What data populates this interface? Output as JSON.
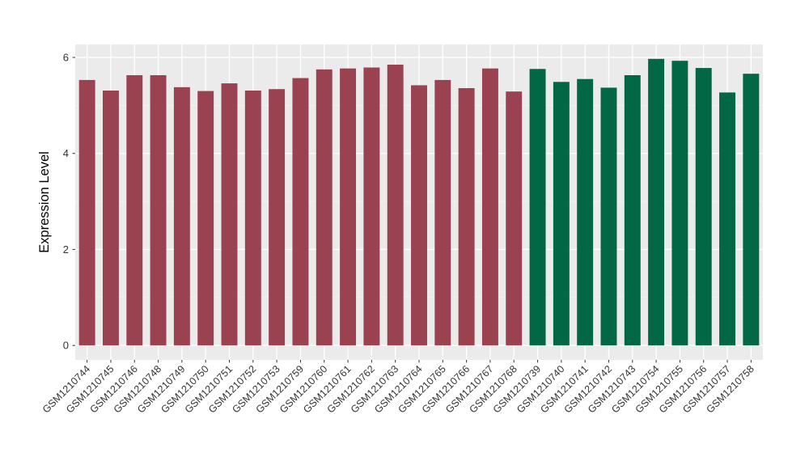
{
  "chart_data": {
    "type": "bar",
    "title": "",
    "xlabel": "",
    "ylabel": "Expression Level",
    "categories": [
      "GSM1210744",
      "GSM1210745",
      "GSM1210746",
      "GSM1210748",
      "GSM1210749",
      "GSM1210750",
      "GSM1210751",
      "GSM1210752",
      "GSM1210753",
      "GSM1210759",
      "GSM1210760",
      "GSM1210761",
      "GSM1210762",
      "GSM1210763",
      "GSM1210764",
      "GSM1210765",
      "GSM1210766",
      "GSM1210767",
      "GSM1210768",
      "GSM1210739",
      "GSM1210740",
      "GSM1210741",
      "GSM1210742",
      "GSM1210743",
      "GSM1210754",
      "GSM1210755",
      "GSM1210756",
      "GSM1210757",
      "GSM1210758"
    ],
    "values": [
      5.53,
      5.31,
      5.63,
      5.63,
      5.38,
      5.3,
      5.46,
      5.31,
      5.34,
      5.57,
      5.75,
      5.77,
      5.79,
      5.85,
      5.42,
      5.53,
      5.36,
      5.77,
      5.29,
      5.76,
      5.49,
      5.55,
      5.37,
      5.63,
      5.97,
      5.93,
      5.78,
      5.27,
      5.66
    ],
    "groups": [
      "groupA",
      "groupA",
      "groupA",
      "groupA",
      "groupA",
      "groupA",
      "groupA",
      "groupA",
      "groupA",
      "groupA",
      "groupA",
      "groupA",
      "groupA",
      "groupA",
      "groupA",
      "groupA",
      "groupA",
      "groupA",
      "groupA",
      "groupB",
      "groupB",
      "groupB",
      "groupB",
      "groupB",
      "groupB",
      "groupB",
      "groupB",
      "groupB",
      "groupB"
    ],
    "group_colors": {
      "groupA": "#9B4250",
      "groupB": "#026745"
    },
    "yticks": [
      0,
      2,
      4,
      6
    ],
    "minor_yticks": [
      1,
      3,
      5
    ],
    "ylim": [
      -0.3,
      6.27
    ],
    "bar_width_fraction": 0.68,
    "grid": true,
    "legend_position": "none",
    "panel_bg": "#EBEBEB",
    "grid_major_color": "#FFFFFF",
    "grid_minor_color": "#F6F6F6",
    "tick_color": "#333333",
    "tick_label_color": "#333333",
    "axis_title_color": "#000000"
  }
}
